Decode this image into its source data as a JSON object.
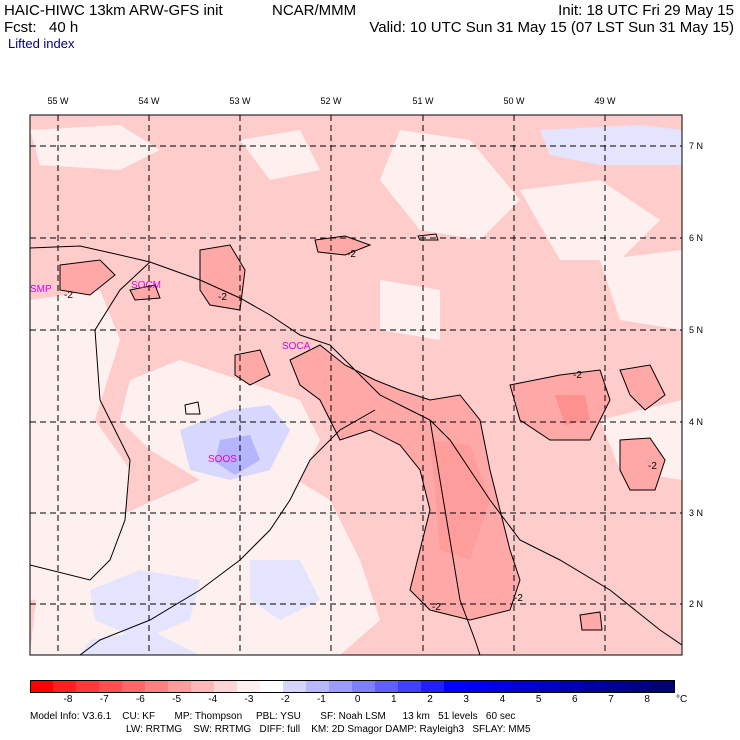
{
  "header": {
    "model": "HAIC-HIWC 13km ARW-GFS init",
    "org": "NCAR/MMM",
    "init": "Init: 18 UTC Fri 29 May 15",
    "fcst": "Fcst:   40 h",
    "valid": "Valid: 10 UTC Sun 31 May 15 (07 LST Sun 31 May 15)",
    "field": "Lifted index"
  },
  "map": {
    "lon_labels": [
      "55 W",
      "54 W",
      "53 W",
      "52 W",
      "51 W",
      "50 W",
      "49 W"
    ],
    "lat_labels": [
      "7 N",
      "6 N",
      "5 N",
      "4 N",
      "3 N",
      "2 N"
    ],
    "stations": [
      "SMP",
      "SOCM",
      "SOCA",
      "SOOS"
    ],
    "contour_label": "-2"
  },
  "colorbar": {
    "ticks": [
      "-8",
      "-7",
      "-6",
      "-5",
      "-4",
      "-3",
      "-2",
      "-1",
      "0",
      "1",
      "2",
      "3",
      "4",
      "5",
      "6",
      "7",
      "8"
    ],
    "unit": "°C",
    "colors": [
      "#ff0000",
      "#ff2020",
      "#ff3a3a",
      "#ff5050",
      "#ff6868",
      "#ff8080",
      "#ff9c9c",
      "#ffb8b8",
      "#ffd4d4",
      "#fff0f0",
      "#ffffff",
      "#d4d4ff",
      "#b8b8ff",
      "#9c9cff",
      "#8080ff",
      "#6060ff",
      "#4040ff",
      "#2020ff",
      "#0000ff",
      "#0000f0",
      "#0000e0",
      "#0000d0",
      "#0000c0",
      "#0000b0",
      "#0000a0",
      "#000090",
      "#000080",
      "#000070"
    ]
  },
  "info": {
    "line1": "Model Info: V3.6.1    CU: KF       MP: Thompson     PBL: YSU       SF: Noah LSM      13 km   51 levels   60 sec",
    "line2": "LW: RRTMG    SW: RRTMG   DIFF: full    KM: 2D Smagor DAMP: Rayleigh3   SFLAY: MM5"
  }
}
